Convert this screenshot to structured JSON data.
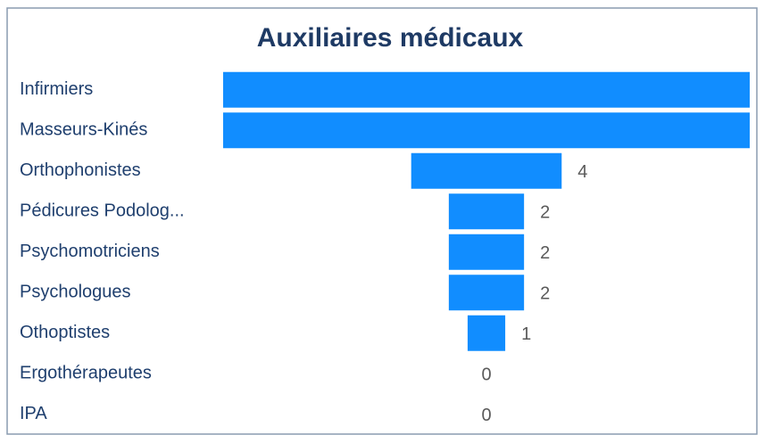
{
  "chart_data": {
    "type": "funnel",
    "title": "Auxiliaires médicaux",
    "categories": [
      "Infirmiers",
      "Masseurs-Kinés",
      "Orthophonistes",
      "Pédicures Podolog...",
      "Psychomotriciens",
      "Psychologues",
      "Othoptistes",
      "Ergothérapeutes",
      "IPA"
    ],
    "values": [
      14,
      14,
      4,
      2,
      2,
      2,
      1,
      0,
      0
    ],
    "color": "#118dff"
  }
}
